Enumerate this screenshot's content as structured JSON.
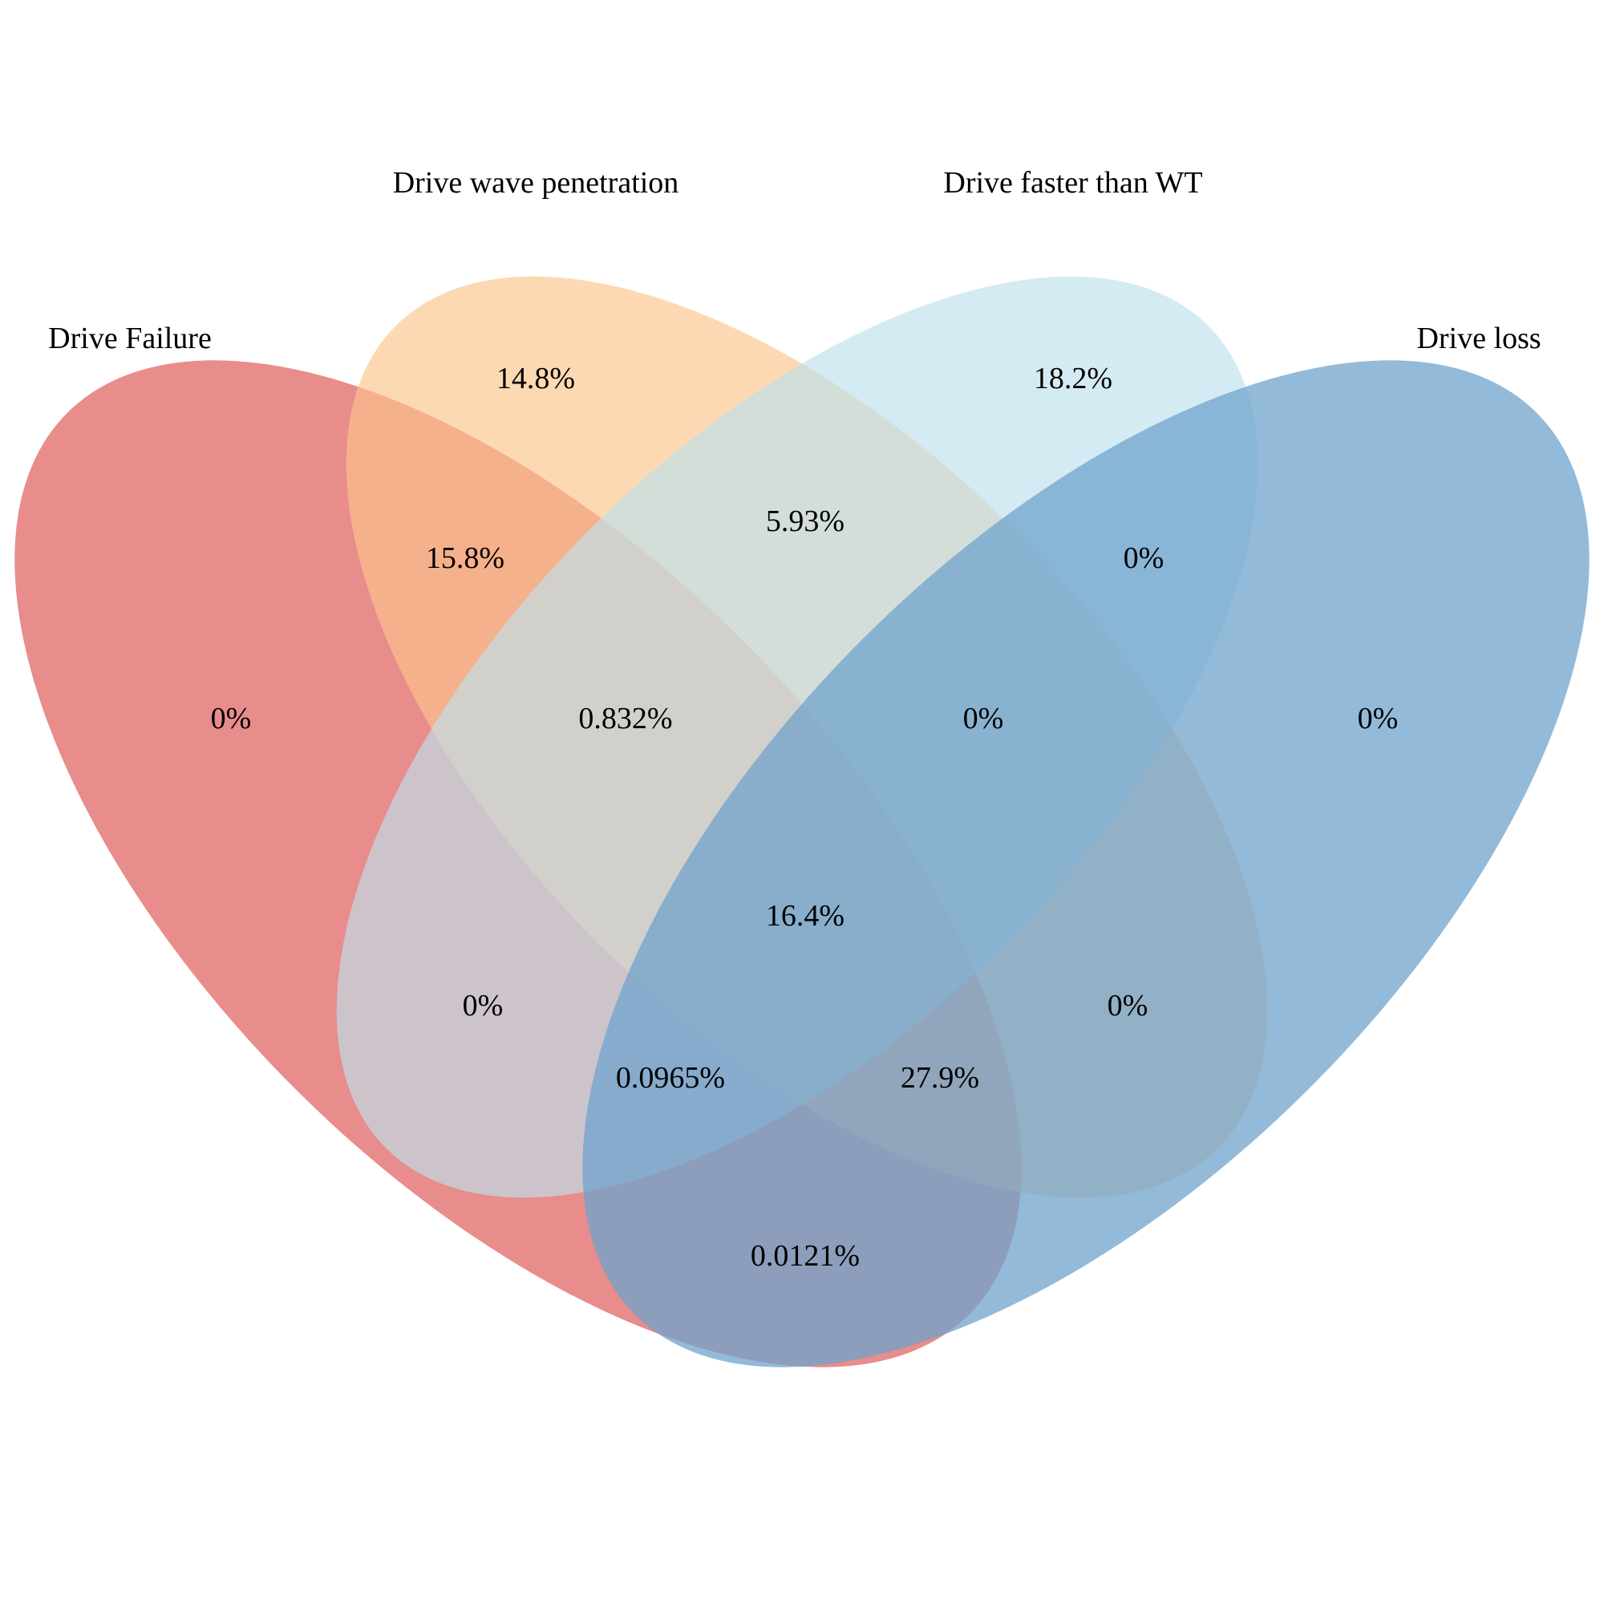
{
  "diagram": {
    "type": "venn-4-set",
    "sets": [
      {
        "id": "A",
        "name": "Drive Failure",
        "color": "#E06666"
      },
      {
        "id": "B",
        "name": "Drive wave penetration",
        "color": "#FCC58A"
      },
      {
        "id": "C",
        "name": "Drive faster than WT",
        "color": "#BFE1EC"
      },
      {
        "id": "D",
        "name": "Drive loss",
        "color": "#6FA3CC"
      }
    ],
    "regions": [
      {
        "sets": [
          "A"
        ],
        "label": "0%"
      },
      {
        "sets": [
          "B"
        ],
        "label": "14.8%"
      },
      {
        "sets": [
          "C"
        ],
        "label": "18.2%"
      },
      {
        "sets": [
          "D"
        ],
        "label": "0%"
      },
      {
        "sets": [
          "A",
          "B"
        ],
        "label": "15.8%"
      },
      {
        "sets": [
          "B",
          "C"
        ],
        "label": "5.93%"
      },
      {
        "sets": [
          "C",
          "D"
        ],
        "label": "0%"
      },
      {
        "sets": [
          "A",
          "B",
          "C"
        ],
        "label": "0.832%"
      },
      {
        "sets": [
          "B",
          "C",
          "D"
        ],
        "label": "0%"
      },
      {
        "sets": [
          "A",
          "B",
          "C",
          "D"
        ],
        "label": "16.4%"
      },
      {
        "sets": [
          "A",
          "C"
        ],
        "label": "0%"
      },
      {
        "sets": [
          "B",
          "D"
        ],
        "label": "0%"
      },
      {
        "sets": [
          "A",
          "C",
          "D"
        ],
        "label": "0.0965%"
      },
      {
        "sets": [
          "A",
          "B",
          "D"
        ],
        "label": "27.9%"
      },
      {
        "sets": [
          "A",
          "D"
        ],
        "label": "0.0121%"
      }
    ]
  }
}
